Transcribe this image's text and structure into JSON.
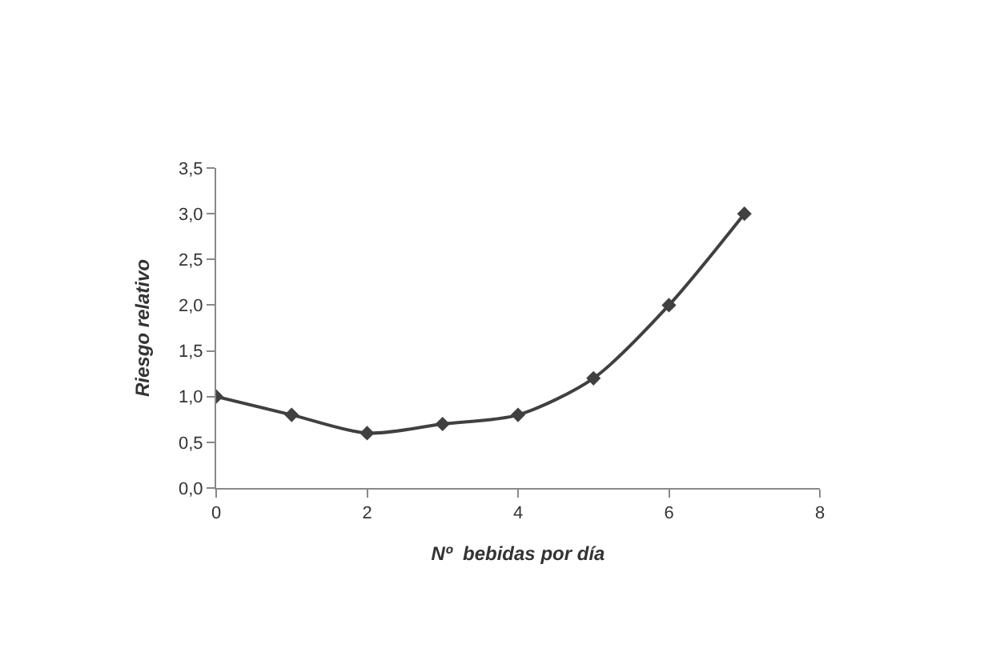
{
  "chart_data": {
    "type": "line",
    "xlabel": "Nº  bebidas por día",
    "ylabel": "Riesgo relativo",
    "x": [
      0,
      1,
      2,
      3,
      4,
      5,
      6,
      7
    ],
    "series": [
      {
        "color": "#404040",
        "values": [
          1.0,
          0.8,
          0.6,
          0.7,
          0.8,
          1.2,
          2.0,
          3.0
        ]
      }
    ],
    "xlim": [
      0,
      8
    ],
    "xticks": [
      0,
      2,
      4,
      6,
      8
    ],
    "ylim": [
      0,
      3.5
    ],
    "yticks": [
      {
        "value": 0,
        "label": "0,0"
      },
      {
        "value": 0.5,
        "label": "0,5"
      },
      {
        "value": 1,
        "label": "1,0"
      },
      {
        "value": 1.5,
        "label": "1,5"
      },
      {
        "value": 2,
        "label": "2,0"
      },
      {
        "value": 2.5,
        "label": "2,5"
      },
      {
        "value": 3,
        "label": "3,0"
      },
      {
        "value": 3.5,
        "label": "3,5"
      }
    ],
    "marker": "diamond",
    "line_style": "solid"
  }
}
